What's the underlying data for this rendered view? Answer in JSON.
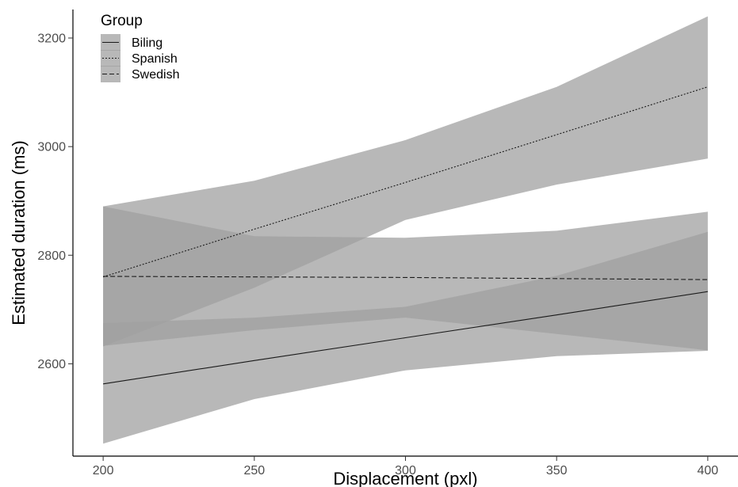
{
  "chart_data": {
    "type": "line",
    "xlabel": "Displacement (pxl)",
    "ylabel": "Estimated duration (ms)",
    "xlim": [
      190,
      410
    ],
    "ylim": [
      2430,
      3270
    ],
    "x_ticks": [
      200,
      250,
      300,
      350,
      400
    ],
    "y_ticks": [
      2600,
      2800,
      3000,
      3200
    ],
    "grid": false,
    "legend": {
      "title": "Group",
      "placement": "top-left"
    },
    "series": [
      {
        "name": "Biling",
        "linestyle": "solid",
        "x": [
          200,
          250,
          300,
          350,
          400
        ],
        "y": [
          2563,
          2606,
          2648,
          2690,
          2733
        ],
        "ci_lower": [
          2453,
          2535,
          2588,
          2614,
          2624
        ],
        "ci_upper": [
          2675,
          2685,
          2705,
          2762,
          2843
        ]
      },
      {
        "name": "Spanish",
        "linestyle": "dotted",
        "x": [
          200,
          250,
          300,
          350,
          400
        ],
        "y": [
          2760,
          2848,
          2934,
          3022,
          3110
        ],
        "ci_lower": [
          2632,
          2740,
          2865,
          2930,
          2978
        ],
        "ci_upper": [
          2890,
          2937,
          3012,
          3110,
          3240
        ]
      },
      {
        "name": "Swedish",
        "linestyle": "dashed",
        "x": [
          200,
          250,
          300,
          350,
          400
        ],
        "y": [
          2761,
          2760,
          2759,
          2757,
          2755
        ],
        "ci_lower": [
          2633,
          2662,
          2685,
          2655,
          2625
        ],
        "ci_upper": [
          2890,
          2835,
          2832,
          2845,
          2880
        ]
      }
    ],
    "band_color": "#a0a0a0",
    "band_opacity": 0.75,
    "line_color": "#1a1a1a"
  }
}
